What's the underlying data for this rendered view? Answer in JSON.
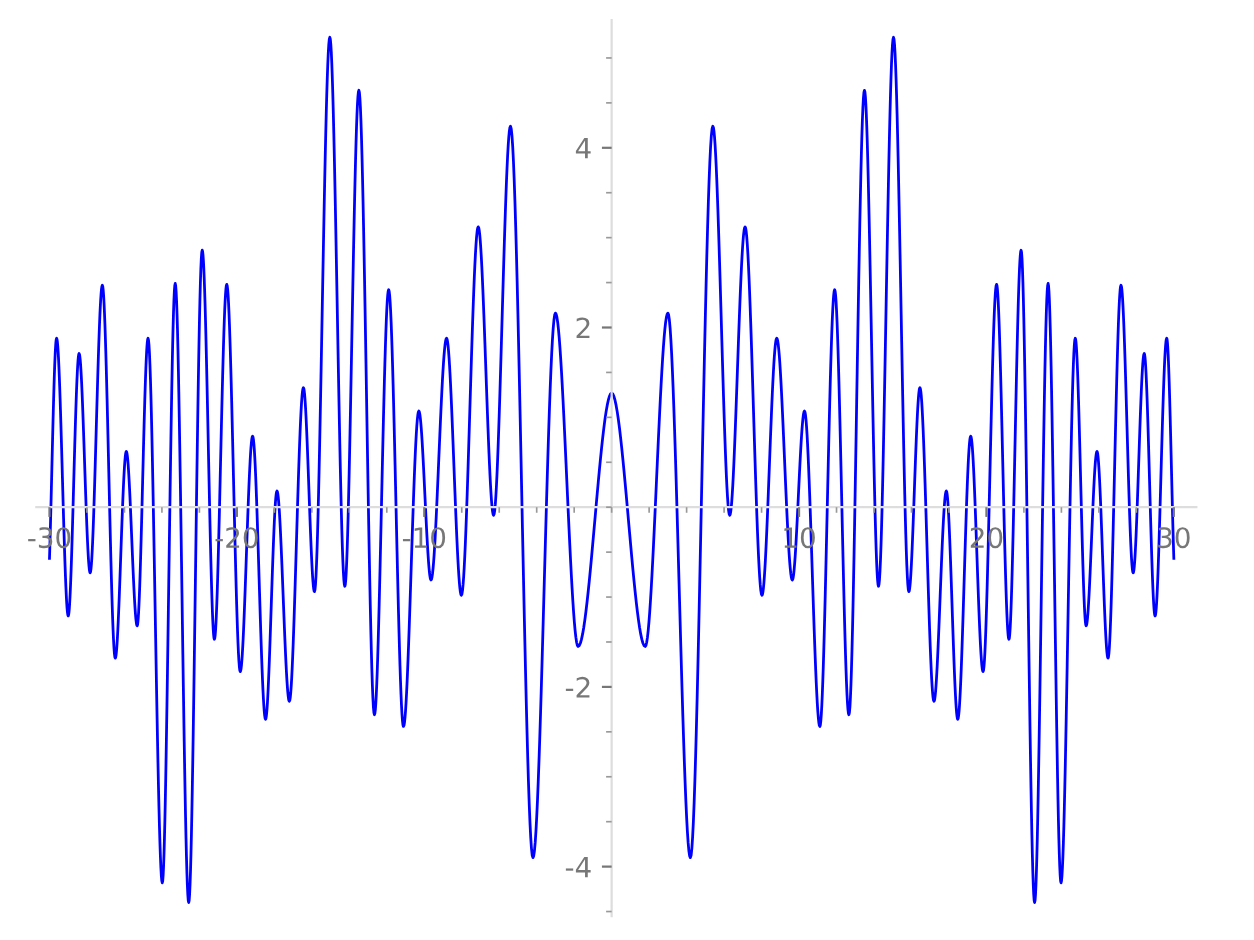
{
  "chart_data": {
    "type": "line",
    "x": [
      -30,
      -29.62,
      -29.0,
      -28.42,
      -27.83,
      -27.18,
      -26.49,
      -25.9,
      -25.32,
      -24.74,
      -23.98,
      -23.29,
      -22.57,
      -21.85,
      -21.2,
      -20.54,
      -19.82,
      -19.16,
      -18.47,
      -17.86,
      -17.2,
      -16.45,
      -15.86,
      -15.04,
      -14.24,
      -13.49,
      -12.66,
      -11.9,
      -11.11,
      -10.29,
      -9.64,
      -8.81,
      -8.02,
      -7.12,
      -6.3,
      -5.4,
      -4.2,
      -3.0,
      -1.79,
      0,
      1.79,
      3.0,
      4.2,
      5.4,
      6.3,
      7.12,
      8.02,
      8.81,
      9.64,
      10.29,
      11.11,
      11.9,
      12.66,
      13.49,
      14.24,
      15.04,
      15.86,
      16.45,
      17.2,
      17.86,
      18.47,
      19.16,
      19.82,
      20.54,
      21.2,
      21.85,
      22.57,
      23.29,
      23.98,
      24.74,
      25.32,
      25.9,
      26.49,
      27.18,
      27.83,
      28.42,
      29.0,
      29.62,
      30
    ],
    "series": [
      {
        "color": "#0000ff",
        "values": [
          -0.57,
          1.88,
          -1.21,
          1.71,
          -0.73,
          2.47,
          -1.68,
          0.62,
          -1.32,
          1.88,
          -4.18,
          2.49,
          -4.4,
          2.86,
          -1.47,
          2.48,
          -1.83,
          0.79,
          -2.36,
          0.18,
          -2.16,
          1.33,
          -0.94,
          5.23,
          -0.88,
          4.64,
          -2.31,
          2.42,
          -2.44,
          1.07,
          -0.81,
          1.88,
          -0.98,
          3.12,
          -0.09,
          4.24,
          -3.9,
          2.16,
          -1.55,
          1.27,
          -1.55,
          2.16,
          -3.9,
          4.24,
          -0.09,
          3.12,
          -0.98,
          1.88,
          -0.81,
          1.07,
          -2.44,
          2.42,
          -2.31,
          4.64,
          -0.88,
          5.23,
          -0.94,
          1.33,
          -2.16,
          0.18,
          -2.36,
          0.79,
          -1.83,
          2.48,
          -1.47,
          2.86,
          -4.4,
          2.49,
          -4.18,
          1.88,
          -1.32,
          0.62,
          -1.68,
          2.47,
          -0.73,
          1.71,
          -1.21,
          1.88,
          -0.57
        ]
      }
    ],
    "xlim": [
      -30.7,
      31.2
    ],
    "ylim": [
      -4.55,
      5.42
    ],
    "xticks": [
      -30,
      -20,
      -10,
      10,
      20,
      30
    ],
    "yticks": [
      -4,
      -2,
      2,
      4
    ],
    "grid": false,
    "legend": false,
    "marker": "none",
    "line_style": "solid"
  }
}
